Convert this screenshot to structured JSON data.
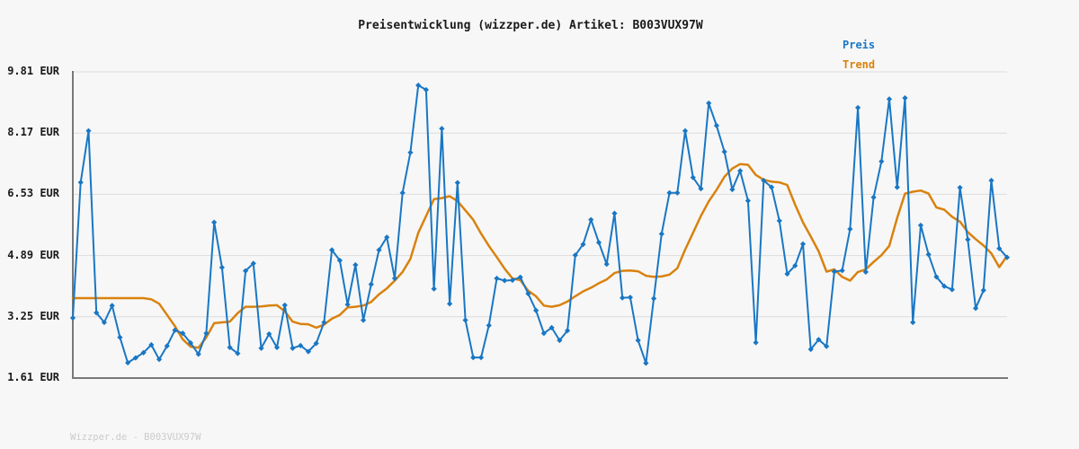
{
  "header": {
    "title": "Preisentwicklung (wizzper.de) Artikel: B003VUX97W"
  },
  "legend": {
    "items": [
      {
        "label": "Preis",
        "color": "#1977c4"
      },
      {
        "label": "Trend",
        "color": "#d9820e"
      }
    ]
  },
  "footer": {
    "watermark": "Wizzper.de - B003VUX97W"
  },
  "colors": {
    "background": "#f7f7f7",
    "grid": "#dcdcdc",
    "axis": "#787878",
    "preis": "#1977c4",
    "trend": "#d9820e",
    "text": "#1a1a1a",
    "watermark": "#cbcbcb"
  },
  "chart_data": {
    "type": "line",
    "title": "Preisentwicklung (wizzper.de) Artikel: B003VUX97W",
    "xlabel": "",
    "ylabel": "EUR",
    "ylim": [
      1.61,
      9.81
    ],
    "y_ticks": [
      9.81,
      8.17,
      6.53,
      4.89,
      3.25,
      1.61
    ],
    "y_tick_labels": [
      "9.81 EUR",
      "8.17 EUR",
      "6.53 EUR",
      "4.89 EUR",
      "3.25 EUR",
      "1.61 EUR"
    ],
    "x_tick_labels": [],
    "grid": "horizontal",
    "legend_position": "top-right",
    "series": [
      {
        "name": "Preis",
        "color": "#1977c4",
        "marker": "diamond",
        "values": [
          3.22,
          6.85,
          8.23,
          3.36,
          3.1,
          3.55,
          2.7,
          2.02,
          2.15,
          2.29,
          2.5,
          2.11,
          2.47,
          2.89,
          2.81,
          2.55,
          2.25,
          2.81,
          5.78,
          4.57,
          2.43,
          2.27,
          4.48,
          4.68,
          2.41,
          2.79,
          2.43,
          3.56,
          2.41,
          2.48,
          2.32,
          2.54,
          3.1,
          5.04,
          4.76,
          3.58,
          4.64,
          3.16,
          4.12,
          5.04,
          5.38,
          4.28,
          6.57,
          7.65,
          9.45,
          9.33,
          4.0,
          8.29,
          3.6,
          6.84,
          3.16,
          2.16,
          2.16,
          3.02,
          4.28,
          4.22,
          4.23,
          4.31,
          3.87,
          3.42,
          2.81,
          2.96,
          2.62,
          2.88,
          4.9,
          5.19,
          5.85,
          5.24,
          4.66,
          6.02,
          3.76,
          3.77,
          2.62,
          2.01,
          3.74,
          5.47,
          6.57,
          6.57,
          8.23,
          6.98,
          6.68,
          8.97,
          8.37,
          7.67,
          6.66,
          7.16,
          6.36,
          2.56,
          6.9,
          6.72,
          5.82,
          4.4,
          4.62,
          5.2,
          2.38,
          2.64,
          2.46,
          4.46,
          4.49,
          5.6,
          8.85,
          4.45,
          6.45,
          7.41,
          9.08,
          6.72,
          9.11,
          3.1,
          5.7,
          4.92,
          4.32,
          4.07,
          3.98,
          6.71,
          5.32,
          3.48,
          3.96,
          6.9,
          5.08,
          4.84
        ]
      },
      {
        "name": "Trend",
        "color": "#d9820e",
        "marker": "none",
        "values": [
          3.75,
          3.75,
          3.75,
          3.75,
          3.75,
          3.75,
          3.75,
          3.75,
          3.75,
          3.75,
          3.72,
          3.6,
          3.3,
          3.0,
          2.65,
          2.45,
          2.42,
          2.7,
          3.08,
          3.1,
          3.12,
          3.35,
          3.52,
          3.52,
          3.53,
          3.55,
          3.56,
          3.4,
          3.12,
          3.06,
          3.05,
          2.96,
          3.04,
          3.2,
          3.3,
          3.5,
          3.52,
          3.55,
          3.65,
          3.85,
          4.01,
          4.22,
          4.45,
          4.8,
          5.5,
          5.95,
          6.4,
          6.43,
          6.48,
          6.35,
          6.1,
          5.85,
          5.48,
          5.15,
          4.85,
          4.54,
          4.28,
          4.23,
          3.95,
          3.8,
          3.55,
          3.52,
          3.56,
          3.66,
          3.8,
          3.93,
          4.03,
          4.15,
          4.25,
          4.42,
          4.48,
          4.49,
          4.47,
          4.35,
          4.32,
          4.33,
          4.38,
          4.55,
          5.05,
          5.5,
          5.95,
          6.34,
          6.65,
          7.0,
          7.22,
          7.34,
          7.32,
          7.05,
          6.92,
          6.87,
          6.85,
          6.78,
          6.25,
          5.78,
          5.4,
          5.0,
          4.46,
          4.52,
          4.32,
          4.22,
          4.45,
          4.52,
          4.72,
          4.9,
          5.15,
          5.9,
          6.55,
          6.6,
          6.63,
          6.55,
          6.18,
          6.12,
          5.93,
          5.8,
          5.52,
          5.33,
          5.16,
          4.95,
          4.58,
          4.88
        ]
      }
    ]
  }
}
